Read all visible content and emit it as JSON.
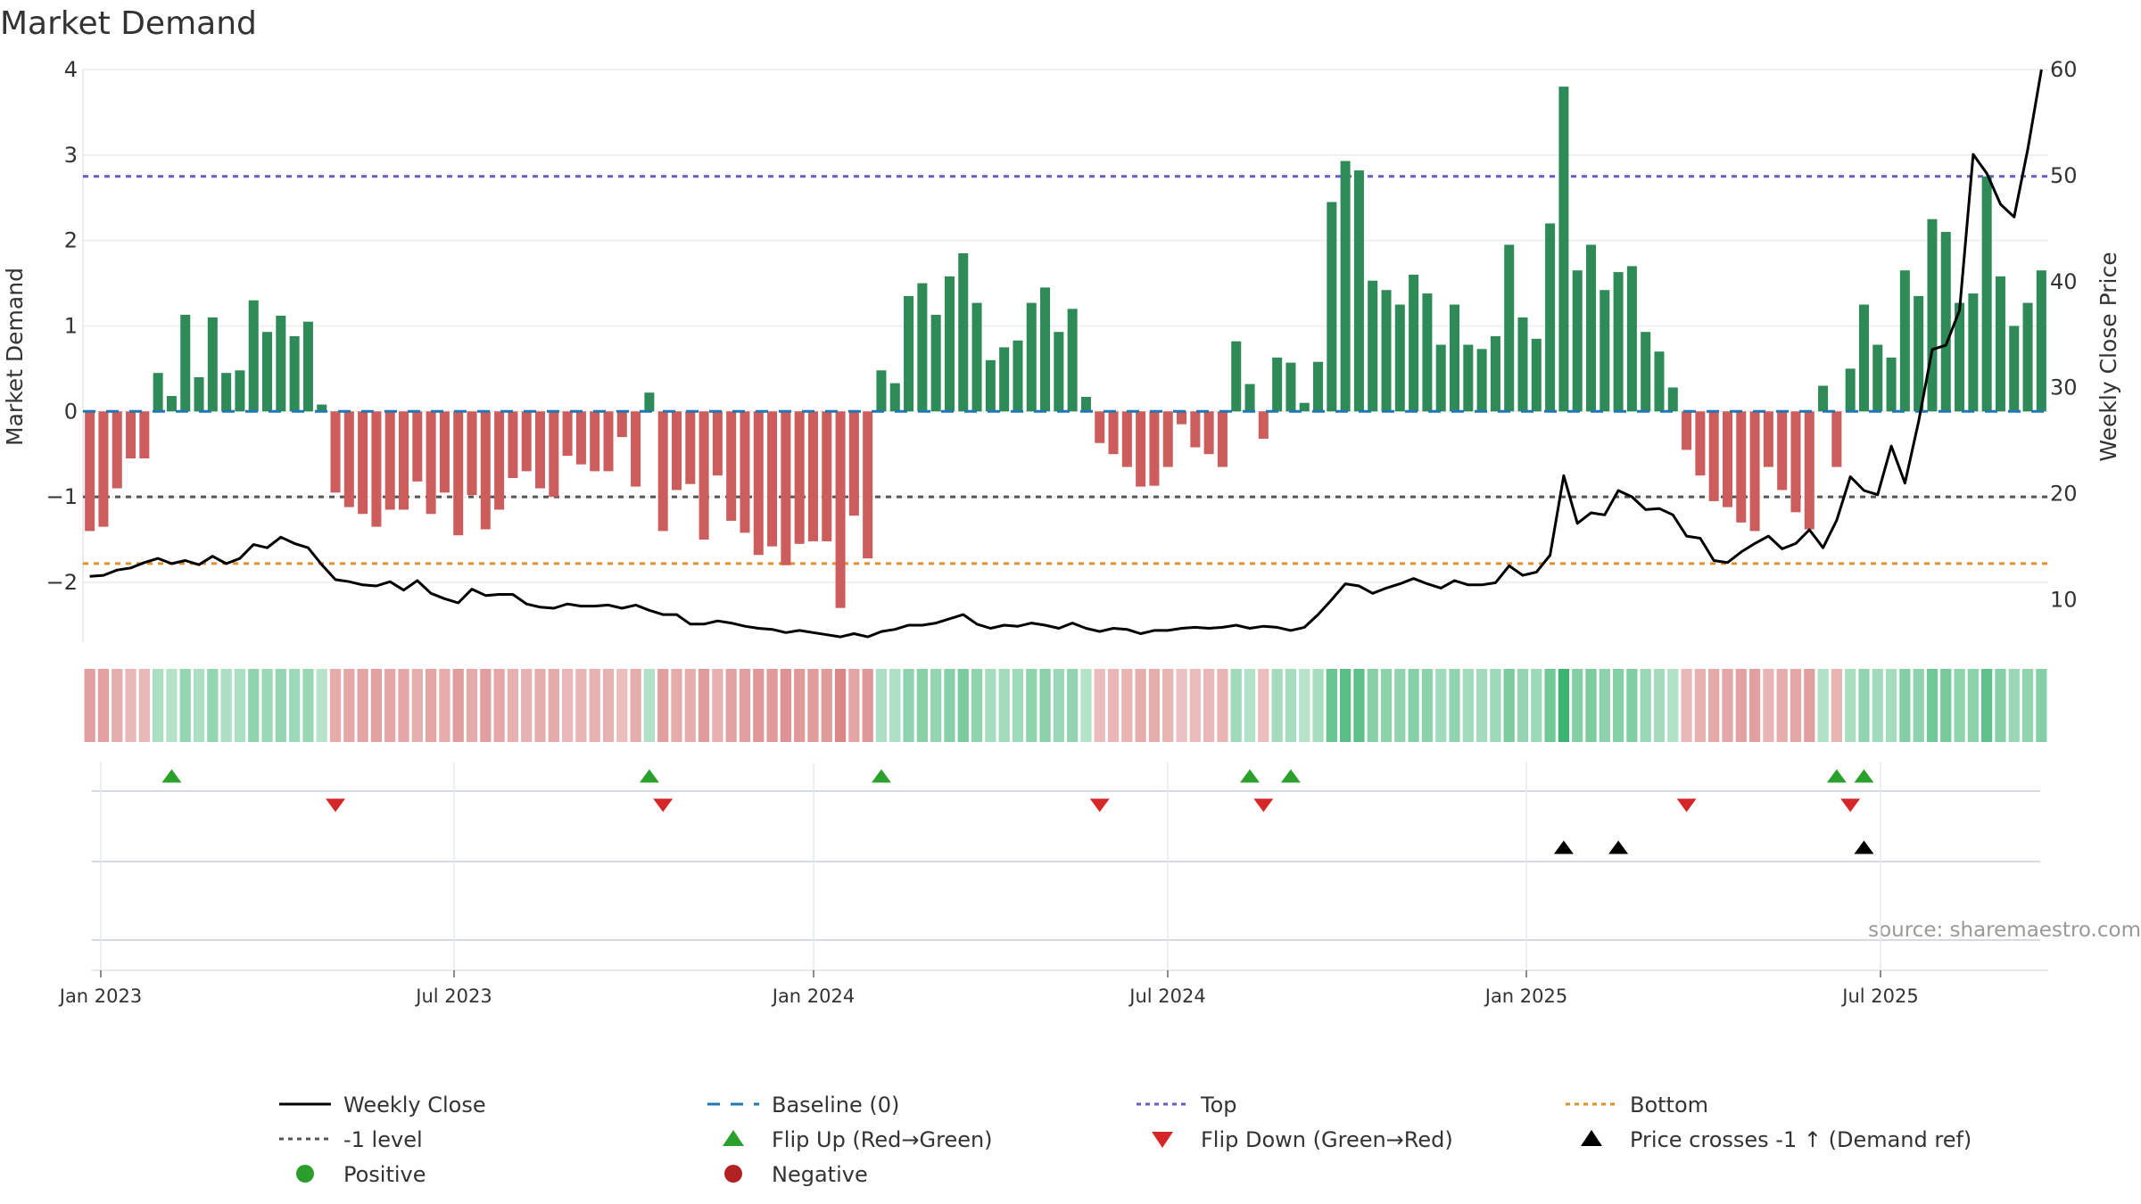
{
  "chart_data": {
    "type": "bar",
    "title": "Market Demand",
    "ylabel": "Market Demand",
    "y2label": "Weekly Close Price",
    "ylim": [
      -2.7,
      4.0
    ],
    "y2lim": [
      6,
      60
    ],
    "yticks": [
      -2,
      -1,
      0,
      1,
      2,
      3,
      4
    ],
    "y2ticks": [
      10,
      20,
      30,
      40,
      50,
      60
    ],
    "xticks": [
      "Jan 2023",
      "Jul 2023",
      "Jan 2024",
      "Jul 2024",
      "Jan 2025",
      "Jul 2025"
    ],
    "levels": {
      "top": 2.75,
      "minus_one": -1.0,
      "bottom": -1.78,
      "baseline": 0
    },
    "demand": [
      -1.4,
      -1.35,
      -0.9,
      -0.55,
      -0.55,
      0.45,
      0.18,
      1.13,
      0.4,
      1.1,
      0.45,
      0.48,
      1.3,
      0.93,
      1.12,
      0.88,
      1.05,
      0.08,
      -0.95,
      -1.12,
      -1.2,
      -1.35,
      -1.15,
      -1.15,
      -0.82,
      -1.2,
      -0.95,
      -1.45,
      -0.98,
      -1.38,
      -1.15,
      -0.78,
      -0.7,
      -0.9,
      -1.0,
      -0.52,
      -0.62,
      -0.7,
      -0.7,
      -0.3,
      -0.88,
      0.22,
      -1.4,
      -0.92,
      -0.85,
      -1.5,
      -0.75,
      -1.28,
      -1.42,
      -1.68,
      -1.58,
      -1.8,
      -1.55,
      -1.52,
      -1.52,
      -2.3,
      -1.22,
      -1.72,
      0.48,
      0.33,
      1.35,
      1.5,
      1.13,
      1.58,
      1.85,
      1.27,
      0.6,
      0.75,
      0.83,
      1.27,
      1.45,
      0.93,
      1.2,
      0.17,
      -0.37,
      -0.5,
      -0.65,
      -0.88,
      -0.87,
      -0.65,
      -0.15,
      -0.42,
      -0.5,
      -0.65,
      0.82,
      0.32,
      -0.32,
      0.63,
      0.57,
      0.1,
      0.58,
      2.45,
      2.93,
      2.82,
      1.53,
      1.42,
      1.25,
      1.6,
      1.38,
      0.78,
      1.25,
      0.78,
      0.73,
      0.88,
      1.95,
      1.1,
      0.85,
      2.2,
      3.8,
      1.65,
      1.95,
      1.42,
      1.63,
      1.7,
      0.93,
      0.7,
      0.28,
      -0.45,
      -0.75,
      -1.05,
      -1.12,
      -1.3,
      -1.4,
      -0.65,
      -0.92,
      -1.18,
      -1.38,
      0.3,
      -0.65,
      0.5,
      1.25,
      0.78,
      0.63,
      1.65,
      1.35,
      2.25,
      2.1,
      1.27,
      1.38,
      2.75,
      1.58,
      1.0,
      1.27,
      1.65
    ],
    "price": [
      12.2,
      12.3,
      12.8,
      13.0,
      13.5,
      13.9,
      13.4,
      13.7,
      13.3,
      14.1,
      13.4,
      13.9,
      15.2,
      14.9,
      15.9,
      15.3,
      14.9,
      13.3,
      11.9,
      11.7,
      11.4,
      11.3,
      11.7,
      10.9,
      11.8,
      10.6,
      10.1,
      9.7,
      11.0,
      10.4,
      10.5,
      10.5,
      9.6,
      9.3,
      9.2,
      9.6,
      9.4,
      9.4,
      9.5,
      9.2,
      9.5,
      9.0,
      8.6,
      8.6,
      7.7,
      7.7,
      8.0,
      7.8,
      7.5,
      7.3,
      7.2,
      6.9,
      7.1,
      6.9,
      6.7,
      6.5,
      6.8,
      6.5,
      7.0,
      7.2,
      7.6,
      7.6,
      7.8,
      8.2,
      8.6,
      7.7,
      7.3,
      7.6,
      7.5,
      7.8,
      7.6,
      7.3,
      7.8,
      7.3,
      7.0,
      7.3,
      7.2,
      6.8,
      7.1,
      7.1,
      7.3,
      7.4,
      7.3,
      7.4,
      7.6,
      7.3,
      7.5,
      7.4,
      7.1,
      7.4,
      8.6,
      10.0,
      11.5,
      11.3,
      10.6,
      11.1,
      11.5,
      12.0,
      11.5,
      11.1,
      11.8,
      11.4,
      11.4,
      11.6,
      13.2,
      12.3,
      12.6,
      14.2,
      21.7,
      17.2,
      18.2,
      18.0,
      20.3,
      19.7,
      18.5,
      18.6,
      18.0,
      16.0,
      15.8,
      13.7,
      13.5,
      14.5,
      15.3,
      16.0,
      14.8,
      15.3,
      16.6,
      14.9,
      17.5,
      21.6,
      20.3,
      19.9,
      24.5,
      21.0,
      26.8,
      33.6,
      34.0,
      37.3,
      52.0,
      50.2,
      47.3,
      46.1,
      52.5,
      60.0
    ],
    "flip_up_weeks": [
      6,
      41,
      58,
      85,
      88,
      128,
      130
    ],
    "flip_down_weeks": [
      18,
      42,
      74,
      86,
      117,
      129
    ],
    "cross_up_weeks": [
      108,
      112,
      130
    ],
    "source": "source: sharemaestro.com",
    "legend": [
      {
        "label": "Weekly Close",
        "marker": "solid-line",
        "color": "#000000"
      },
      {
        "label": "Baseline (0)",
        "marker": "dashed-line",
        "color": "#1f77b4"
      },
      {
        "label": "Top",
        "marker": "dotted-line",
        "color": "#6a5acd"
      },
      {
        "label": "Bottom",
        "marker": "dotted-line",
        "color": "#e0902a"
      },
      {
        "label": "-1 level",
        "marker": "dotted-line",
        "color": "#555555"
      },
      {
        "label": "Flip Up (Red→Green)",
        "marker": "triangle-up",
        "color": "#2ca02c"
      },
      {
        "label": "Flip Down (Green→Red)",
        "marker": "triangle-down",
        "color": "#d62728"
      },
      {
        "label": "Price crosses -1 ↑ (Demand ref)",
        "marker": "triangle-up",
        "color": "#000000"
      },
      {
        "label": "Positive",
        "marker": "dot",
        "color": "#2a9d2a"
      },
      {
        "label": "Negative",
        "marker": "dot",
        "color": "#b22222"
      }
    ]
  },
  "colors": {
    "positive": "#2e8b57",
    "negative": "#cd5c5c",
    "price": "#000000",
    "top": "#6a5acd",
    "bottom": "#e0902a",
    "minus_one": "#555555",
    "baseline": "#1f77b4"
  }
}
